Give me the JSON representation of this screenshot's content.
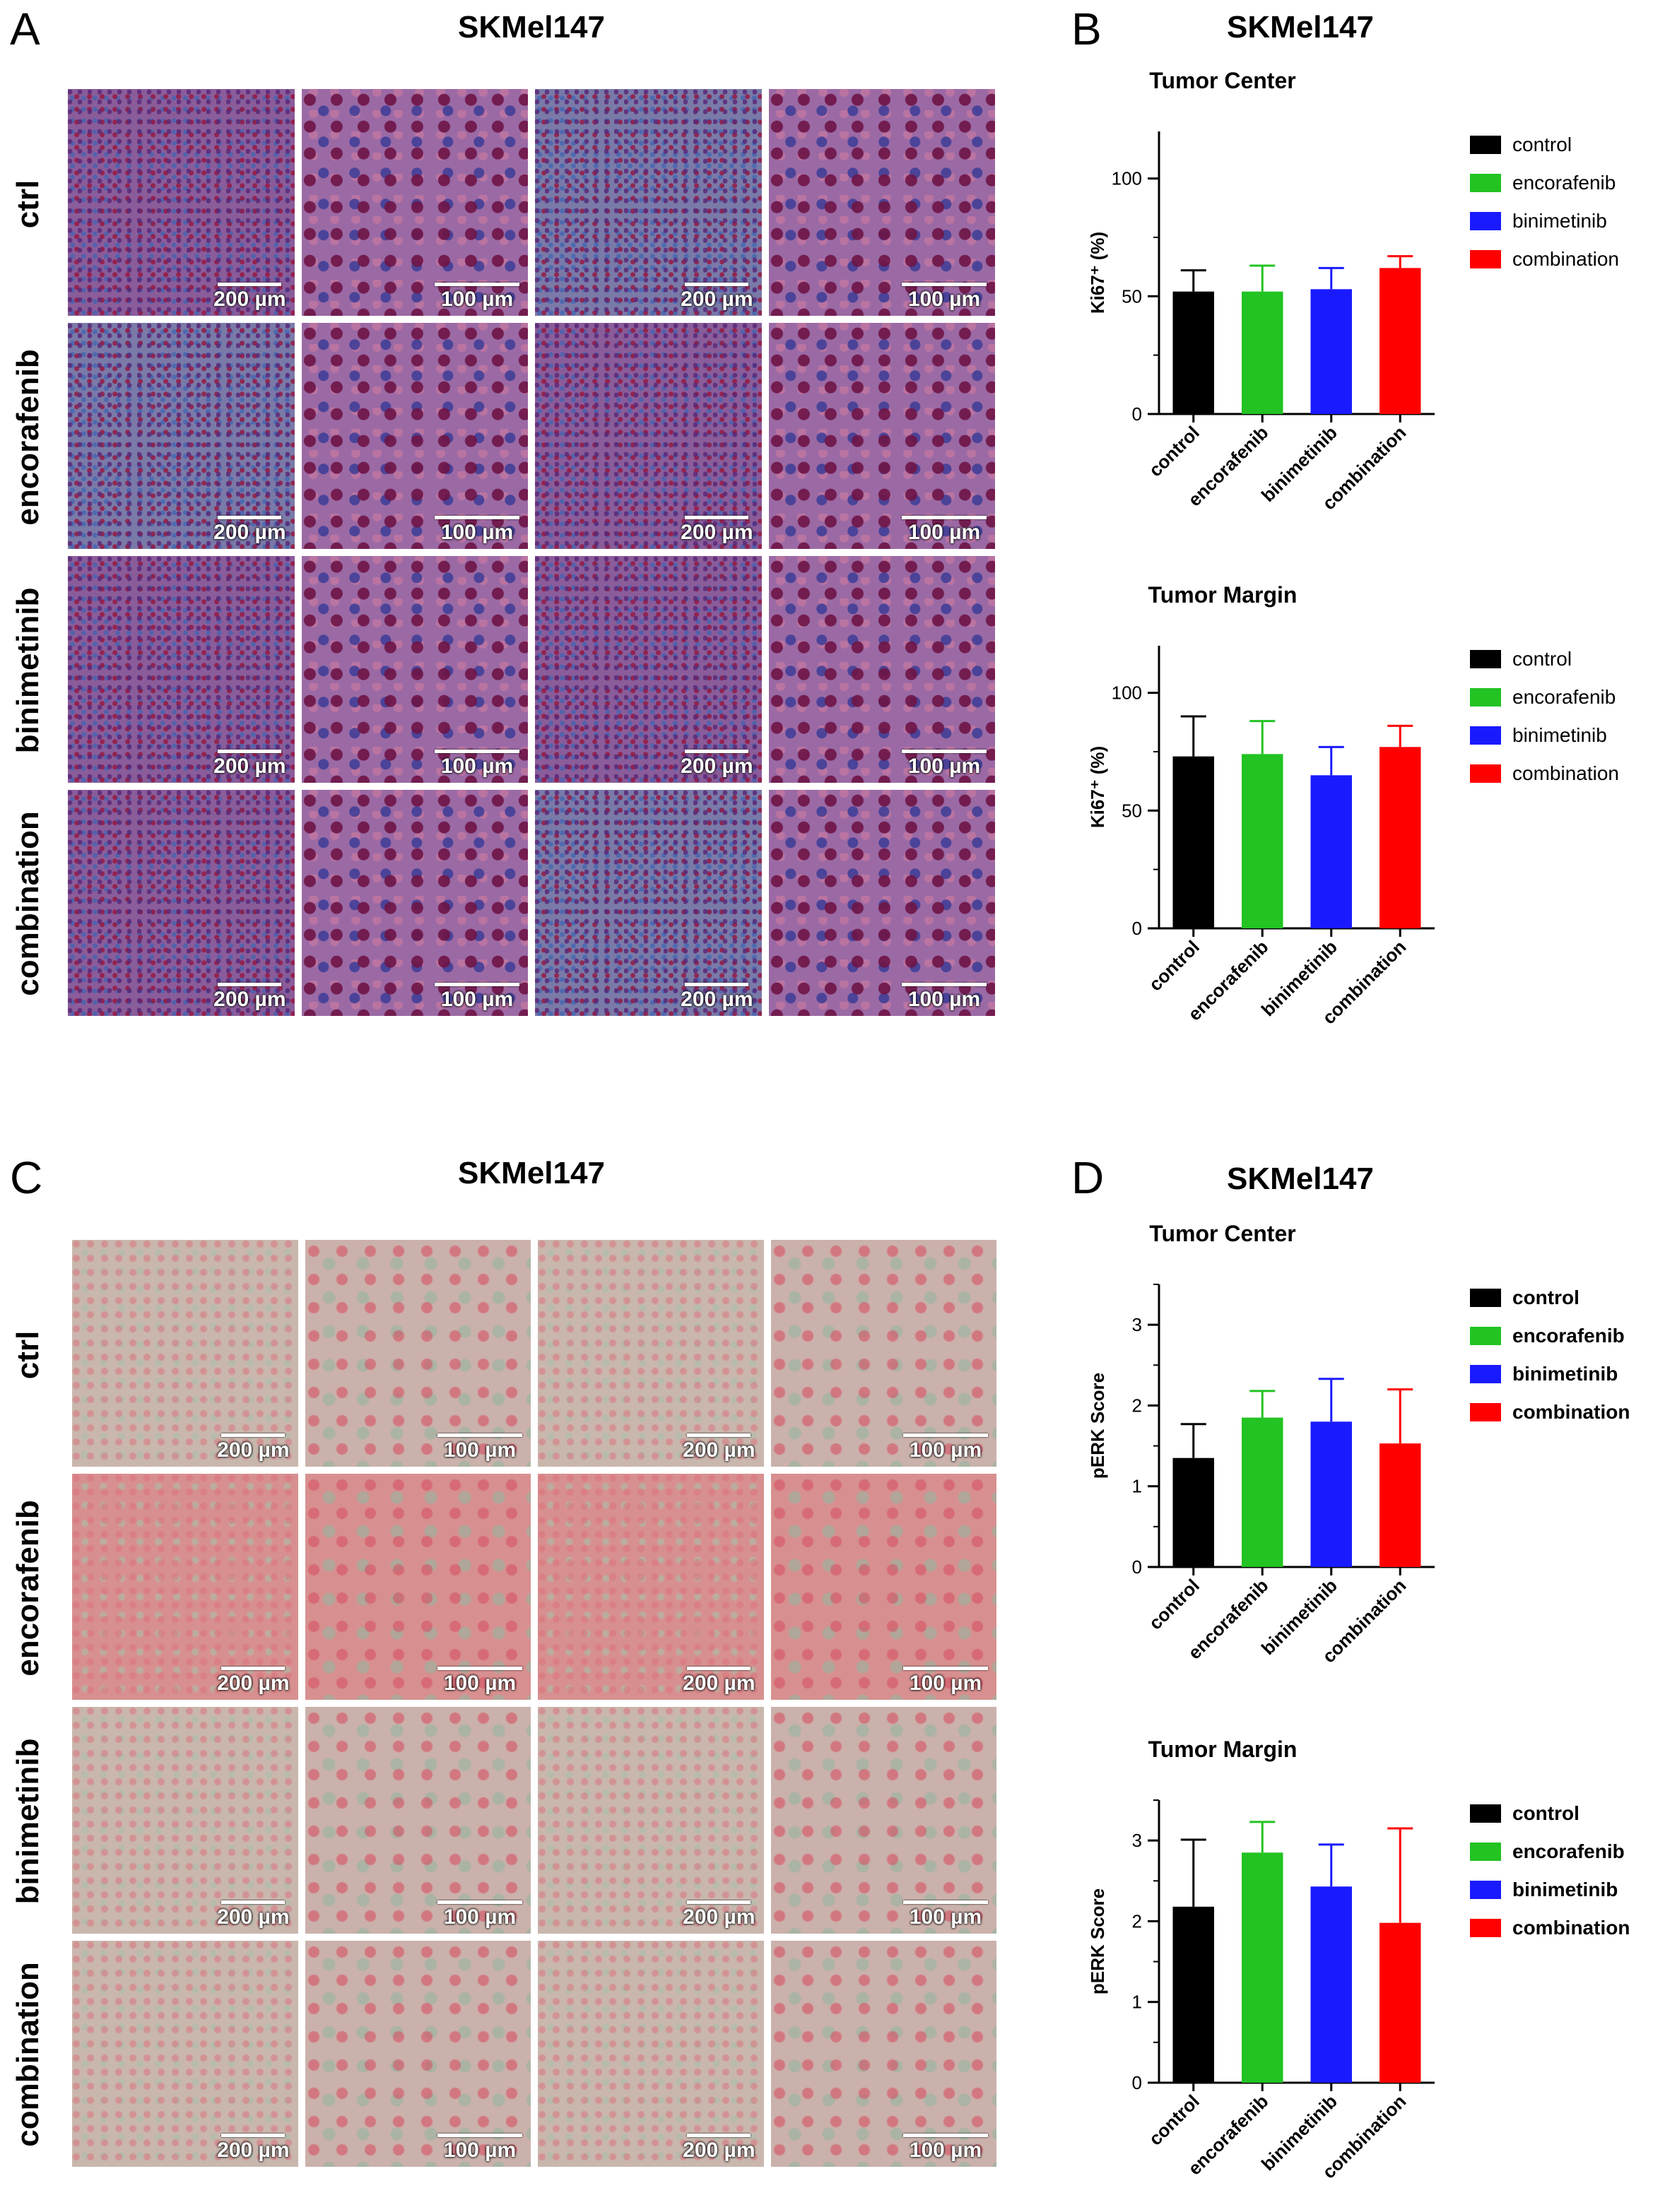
{
  "figure": {
    "panels": [
      {
        "letter": "A",
        "title": "SKMel147",
        "row_labels": [
          "ctrl",
          "encorafenib",
          "binimetinib",
          "combination"
        ],
        "scale_bars": [
          "200 µm",
          "100 µm",
          "200 µm",
          "100 µm"
        ]
      },
      {
        "letter": "B",
        "title": "SKMel147"
      },
      {
        "letter": "C",
        "title": "SKMel147",
        "row_labels": [
          "ctrl",
          "encorafenib",
          "binimetinib",
          "combination"
        ],
        "scale_bars": [
          "200 µm",
          "100 µm",
          "200 µm",
          "100 µm"
        ]
      },
      {
        "letter": "D",
        "title": "SKMel147"
      }
    ]
  },
  "chart_data": [
    {
      "type": "bar",
      "panel": "B",
      "title": "Tumor Center",
      "categories": [
        "control",
        "encorafenib",
        "binimetinib",
        "combination"
      ],
      "values": [
        52,
        52,
        53,
        62
      ],
      "errors": [
        9,
        11,
        9,
        5
      ],
      "colors": [
        "#000000",
        "#22c322",
        "#1a1aff",
        "#ff0000"
      ],
      "ylabel": "Ki67⁺ (%)",
      "ylim": [
        0,
        120
      ],
      "yticks": [
        0,
        50,
        100
      ],
      "legend": [
        "control",
        "encorafenib",
        "binimetinib",
        "combination"
      ],
      "legend_placement": "right"
    },
    {
      "type": "bar",
      "panel": "B",
      "title": "Tumor Margin",
      "categories": [
        "control",
        "encorafenib",
        "binimetinib",
        "combination"
      ],
      "values": [
        73,
        74,
        65,
        77
      ],
      "errors": [
        17,
        14,
        12,
        9
      ],
      "colors": [
        "#000000",
        "#22c322",
        "#1a1aff",
        "#ff0000"
      ],
      "ylabel": "Ki67⁺ (%)",
      "ylim": [
        0,
        120
      ],
      "yticks": [
        0,
        50,
        100
      ],
      "legend": [
        "control",
        "encorafenib",
        "binimetinib",
        "combination"
      ],
      "legend_placement": "right"
    },
    {
      "type": "bar",
      "panel": "D",
      "title": "Tumor Center",
      "categories": [
        "control",
        "encorafenib",
        "binimetinib",
        "combination"
      ],
      "values": [
        1.35,
        1.85,
        1.8,
        1.53
      ],
      "errors": [
        0.42,
        0.33,
        0.53,
        0.67
      ],
      "colors": [
        "#000000",
        "#22c322",
        "#1a1aff",
        "#ff0000"
      ],
      "ylabel": "pERK Score",
      "ylim": [
        0,
        3.5
      ],
      "yticks": [
        0,
        1,
        2,
        3
      ],
      "legend": [
        "control",
        "encorafenib",
        "binimetinib",
        "combination"
      ],
      "legend_placement": "right"
    },
    {
      "type": "bar",
      "panel": "D",
      "title": "Tumor Margin",
      "categories": [
        "control",
        "encorafenib",
        "binimetinib",
        "combination"
      ],
      "values": [
        2.18,
        2.85,
        2.43,
        1.98
      ],
      "errors": [
        0.83,
        0.38,
        0.52,
        1.17
      ],
      "colors": [
        "#000000",
        "#22c322",
        "#1a1aff",
        "#ff0000"
      ],
      "ylabel": "pERK Score",
      "ylim": [
        0,
        3.5
      ],
      "yticks": [
        0,
        1,
        2,
        3
      ],
      "legend": [
        "control",
        "encorafenib",
        "binimetinib",
        "combination"
      ],
      "legend_placement": "right"
    }
  ]
}
